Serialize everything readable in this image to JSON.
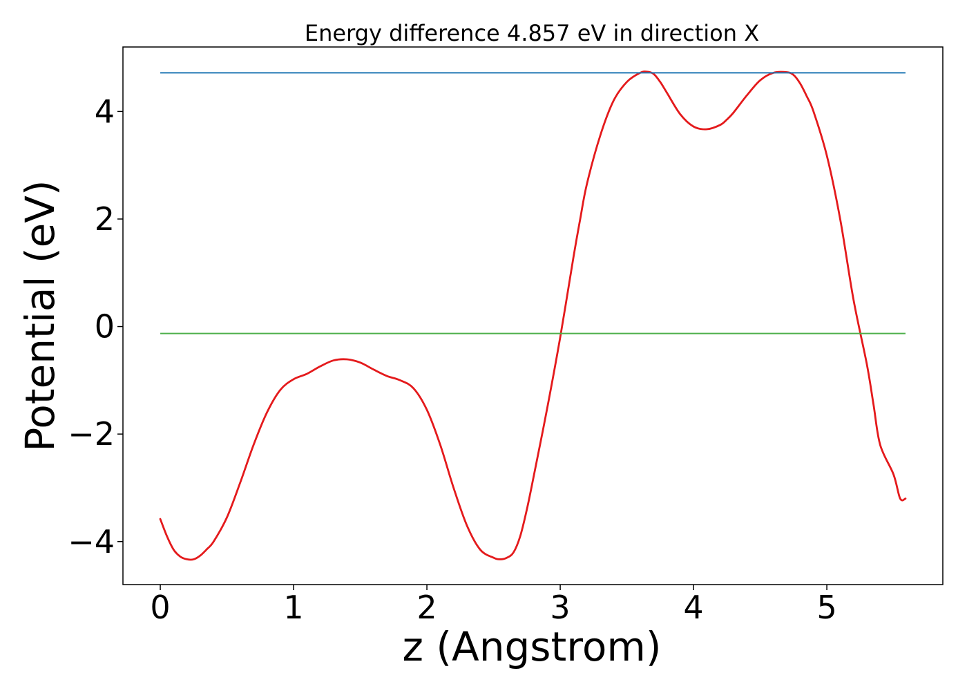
{
  "chart_data": {
    "type": "line",
    "title": "Energy difference 4.857 eV in direction X",
    "xlabel": "z (Angstrom)",
    "ylabel": "Potential (eV)",
    "xlim": [
      -0.28,
      5.87
    ],
    "ylim": [
      -4.8,
      5.2
    ],
    "xticks": [
      0,
      1,
      2,
      3,
      4,
      5
    ],
    "xtick_labels": [
      "0",
      "1",
      "2",
      "3",
      "4",
      "5"
    ],
    "yticks": [
      -4,
      -2,
      0,
      2,
      4
    ],
    "ytick_labels": [
      "−4",
      "−2",
      "0",
      "2",
      "4"
    ],
    "grid": false,
    "legend": "none",
    "series": [
      {
        "kind": "curve",
        "color": "#e41a1c",
        "x": [
          0.0,
          0.05,
          0.1,
          0.15,
          0.2,
          0.25,
          0.3,
          0.35,
          0.4,
          0.5,
          0.6,
          0.7,
          0.8,
          0.9,
          1.0,
          1.1,
          1.2,
          1.3,
          1.4,
          1.5,
          1.6,
          1.7,
          1.8,
          1.9,
          2.0,
          2.1,
          2.2,
          2.3,
          2.4,
          2.5,
          2.55,
          2.6,
          2.65,
          2.7,
          2.75,
          2.8,
          2.9,
          3.0,
          3.1,
          3.15,
          3.2,
          3.3,
          3.4,
          3.5,
          3.6,
          3.65,
          3.7,
          3.75,
          3.8,
          3.9,
          4.0,
          4.1,
          4.2,
          4.25,
          4.3,
          4.4,
          4.5,
          4.6,
          4.7,
          4.75,
          4.8,
          4.85,
          4.9,
          5.0,
          5.1,
          5.2,
          5.3,
          5.35,
          5.4,
          5.5,
          5.55,
          5.59
        ],
        "y": [
          -3.58,
          -3.9,
          -4.15,
          -4.28,
          -4.33,
          -4.33,
          -4.26,
          -4.14,
          -4.0,
          -3.55,
          -2.9,
          -2.2,
          -1.6,
          -1.18,
          -0.98,
          -0.88,
          -0.74,
          -0.63,
          -0.61,
          -0.67,
          -0.8,
          -0.92,
          -1.0,
          -1.15,
          -1.55,
          -2.2,
          -3.0,
          -3.7,
          -4.15,
          -4.3,
          -4.33,
          -4.3,
          -4.2,
          -3.9,
          -3.4,
          -2.8,
          -1.55,
          -0.2,
          1.3,
          2.0,
          2.65,
          3.55,
          4.2,
          4.55,
          4.72,
          4.74,
          4.7,
          4.55,
          4.35,
          3.95,
          3.72,
          3.67,
          3.75,
          3.85,
          3.98,
          4.3,
          4.58,
          4.72,
          4.73,
          4.68,
          4.52,
          4.28,
          4.0,
          3.18,
          2.0,
          0.5,
          -0.7,
          -1.45,
          -2.2,
          -2.75,
          -3.2,
          -3.2
        ]
      },
      {
        "kind": "hline",
        "color": "#1f77b4",
        "y": 4.72,
        "x": [
          0.0,
          5.59
        ]
      },
      {
        "kind": "hline",
        "color": "#4daf4a",
        "y": -0.13,
        "x": [
          0.0,
          5.59
        ]
      }
    ]
  }
}
